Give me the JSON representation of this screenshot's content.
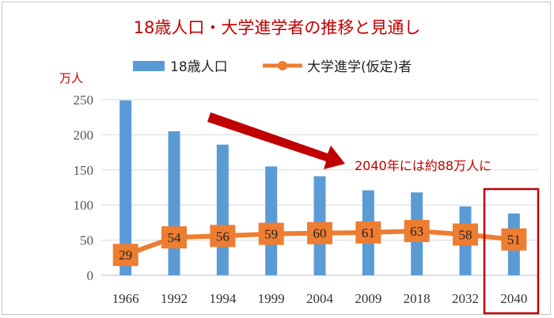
{
  "chart_data": {
    "type": "bar",
    "title": "18歳人口・大学進学者の推移と見通し",
    "unit": "万人",
    "categories": [
      "1966",
      "1992",
      "1994",
      "1999",
      "2004",
      "2009",
      "2018",
      "2032",
      "2040"
    ],
    "series": [
      {
        "name": "18歳人口",
        "kind": "bar",
        "color": "#5b9bd5",
        "values": [
          249,
          205,
          186,
          155,
          141,
          121,
          118,
          98,
          88
        ]
      },
      {
        "name": "大学進学(仮定)者",
        "kind": "line",
        "color": "#ed7d31",
        "values": [
          29,
          54,
          56,
          59,
          60,
          61,
          63,
          58,
          51
        ]
      }
    ],
    "ylim": [
      0,
      250
    ],
    "yticks": [
      0,
      50,
      100,
      150,
      200,
      250
    ],
    "grid": true,
    "legend": "top",
    "annotation": {
      "text": "2040年には約88万人に",
      "color": "#c00000"
    },
    "highlight_category": "2040",
    "colors": {
      "arrow": "#c00000",
      "highlight_box": "#c00000",
      "gridline": "#d9d9d9"
    }
  }
}
